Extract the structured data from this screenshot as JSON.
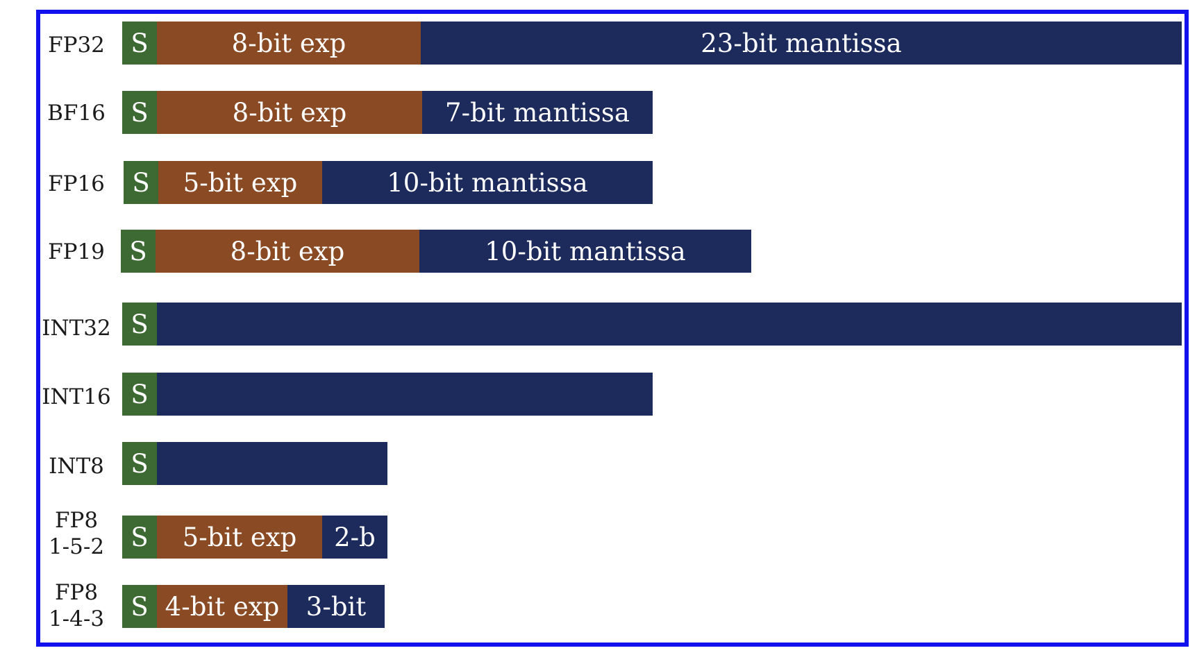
{
  "colors": {
    "frame": "#1212ee",
    "sign": "#3c6a32",
    "exponent": "#8a4a24",
    "mantissa": "#1d2a5c"
  },
  "rows": [
    {
      "label": [
        "FP32"
      ],
      "segments": [
        {
          "kind": "sign",
          "text": "S"
        },
        {
          "kind": "exponent",
          "text": "8-bit exp"
        },
        {
          "kind": "mantissa",
          "text": "23-bit mantissa"
        }
      ]
    },
    {
      "label": [
        "BF16"
      ],
      "segments": [
        {
          "kind": "sign",
          "text": "S"
        },
        {
          "kind": "exponent",
          "text": "8-bit exp"
        },
        {
          "kind": "mantissa",
          "text": "7-bit mantissa"
        }
      ]
    },
    {
      "label": [
        "FP16"
      ],
      "segments": [
        {
          "kind": "sign",
          "text": "S"
        },
        {
          "kind": "exponent",
          "text": "5-bit exp"
        },
        {
          "kind": "mantissa",
          "text": "10-bit mantissa"
        }
      ]
    },
    {
      "label": [
        "FP19"
      ],
      "segments": [
        {
          "kind": "sign",
          "text": "S"
        },
        {
          "kind": "exponent",
          "text": "8-bit exp"
        },
        {
          "kind": "mantissa",
          "text": "10-bit mantissa"
        }
      ]
    },
    {
      "label": [
        "INT32"
      ],
      "segments": [
        {
          "kind": "sign",
          "text": "S"
        },
        {
          "kind": "mantissa",
          "text": ""
        }
      ]
    },
    {
      "label": [
        "INT16"
      ],
      "segments": [
        {
          "kind": "sign",
          "text": "S"
        },
        {
          "kind": "mantissa",
          "text": ""
        }
      ]
    },
    {
      "label": [
        "INT8"
      ],
      "segments": [
        {
          "kind": "sign",
          "text": "S"
        },
        {
          "kind": "mantissa",
          "text": ""
        }
      ]
    },
    {
      "label": [
        "FP8",
        "1-5-2"
      ],
      "segments": [
        {
          "kind": "sign",
          "text": "S"
        },
        {
          "kind": "exponent",
          "text": "5-bit exp"
        },
        {
          "kind": "mantissa",
          "text": "2-b"
        }
      ]
    },
    {
      "label": [
        "FP8",
        "1-4-3"
      ],
      "segments": [
        {
          "kind": "sign",
          "text": "S"
        },
        {
          "kind": "exponent",
          "text": "4-bit exp"
        },
        {
          "kind": "mantissa",
          "text": "3-bit"
        }
      ]
    }
  ]
}
